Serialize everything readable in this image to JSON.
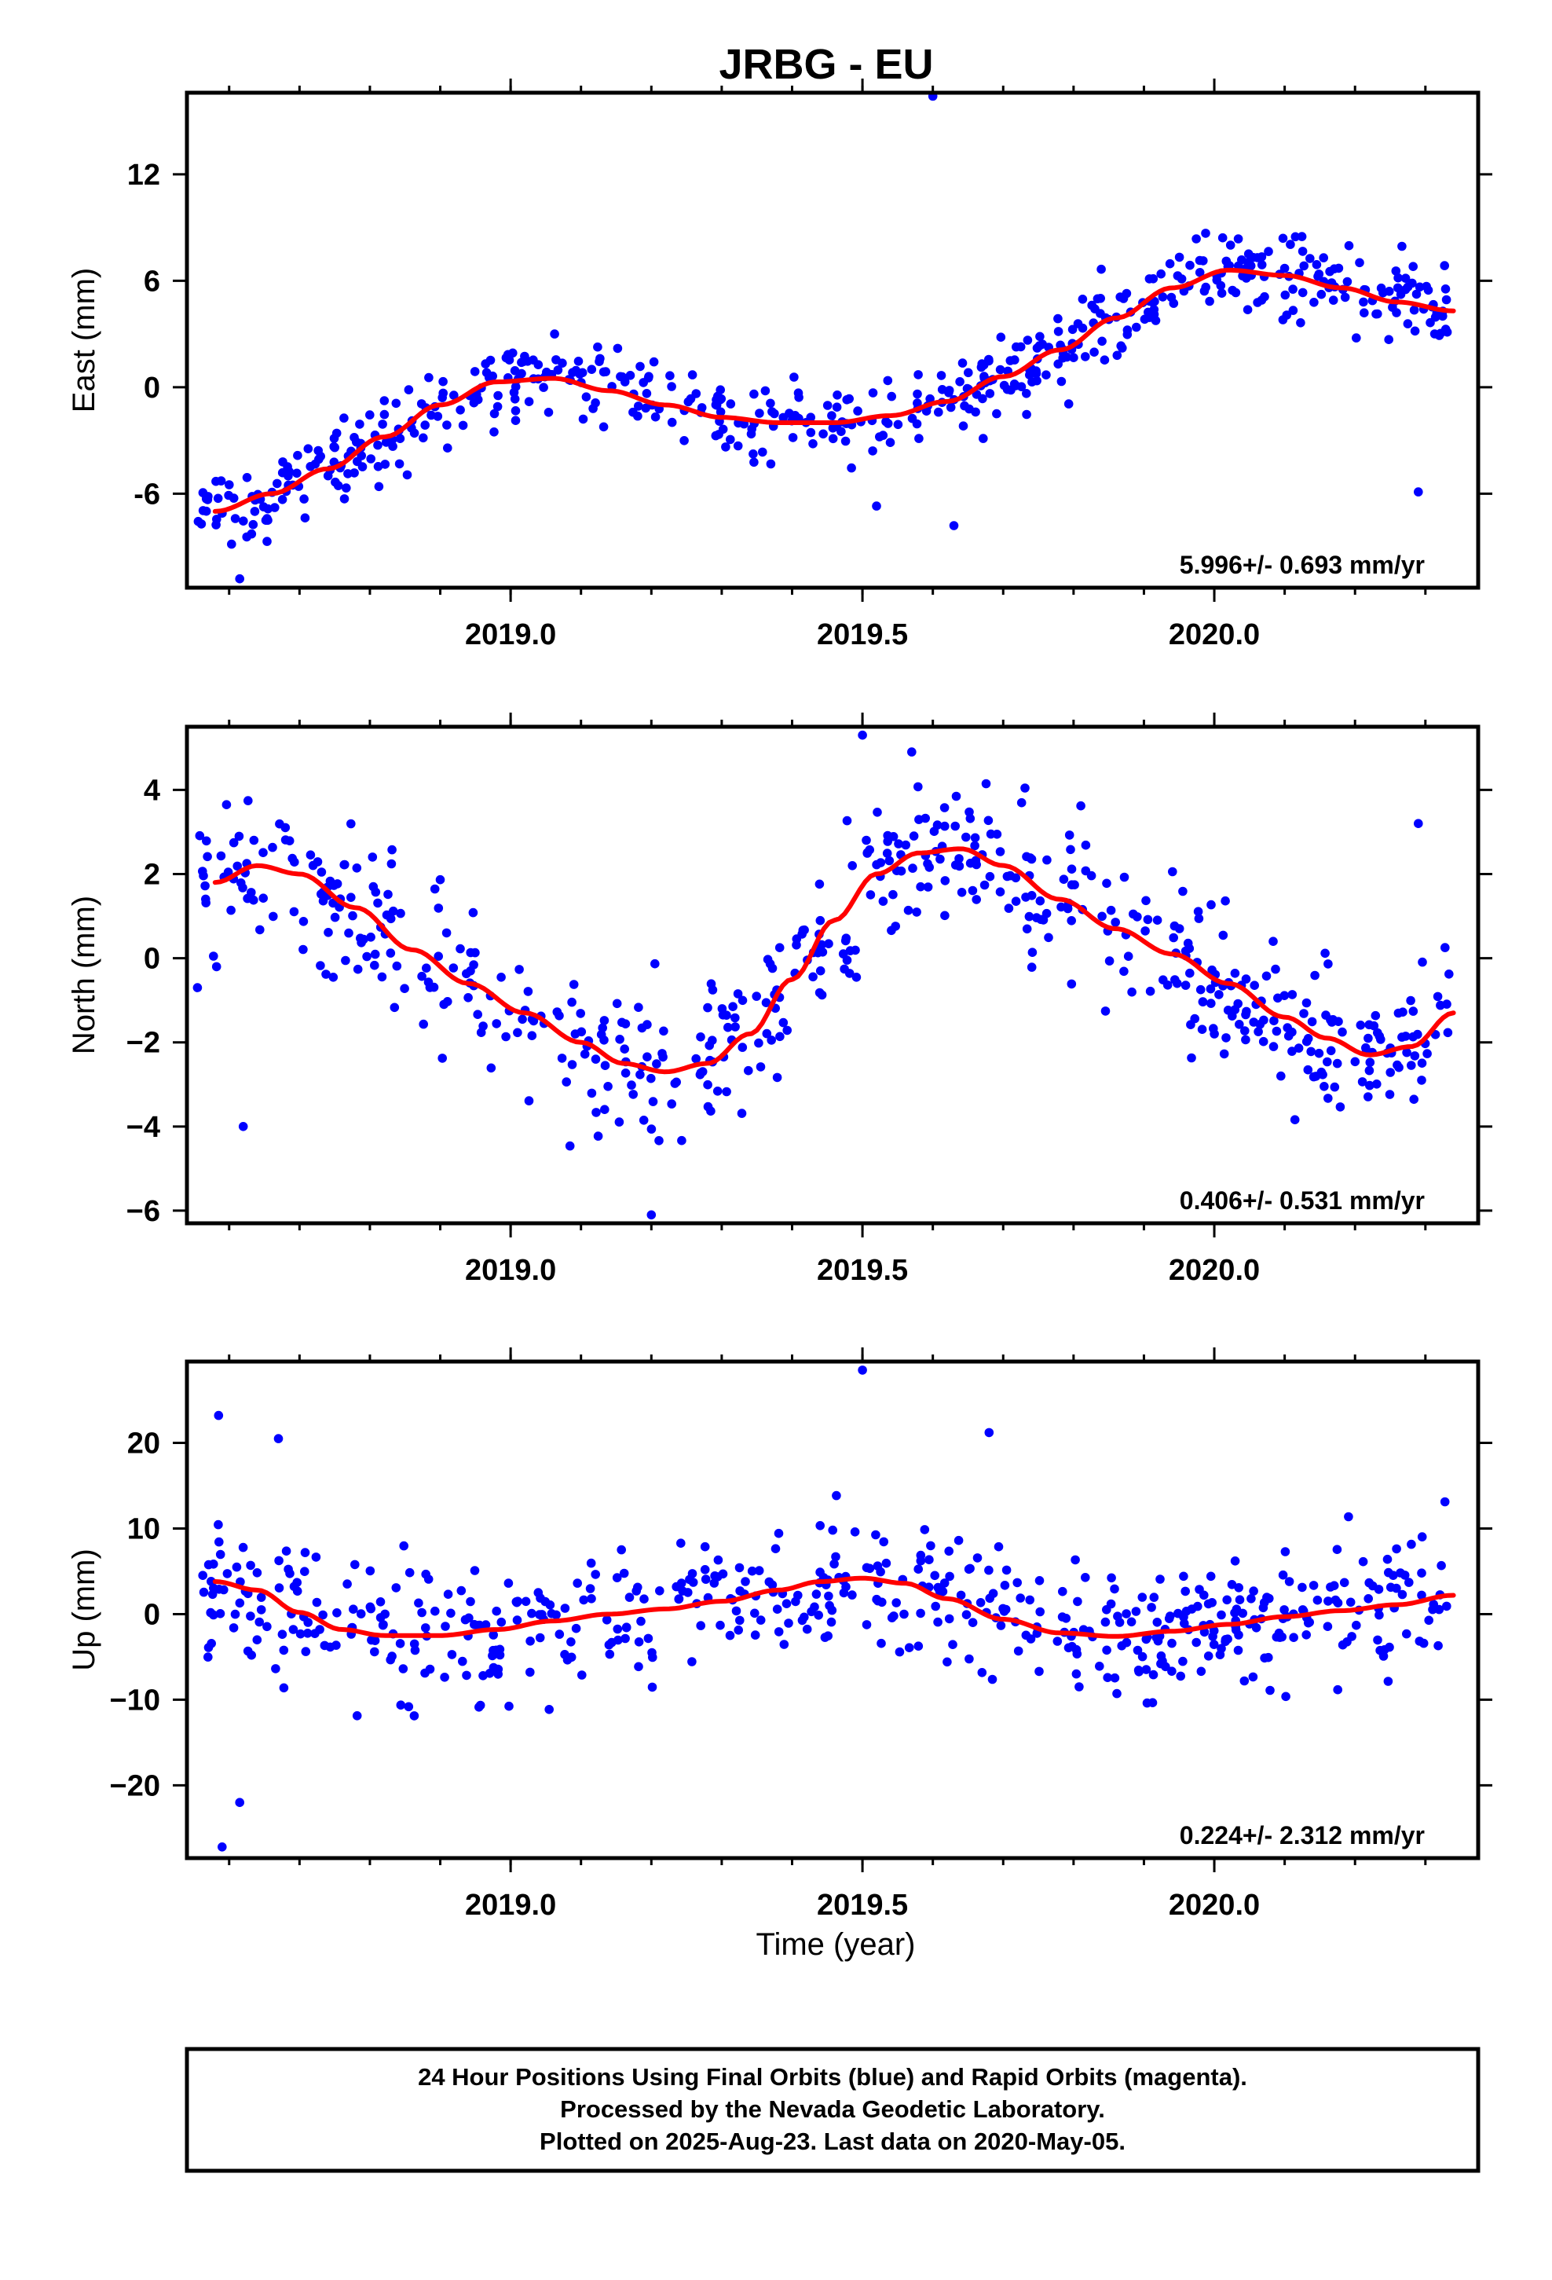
{
  "title": "JRBG - EU",
  "xlabel": "Time (year)",
  "footer": {
    "line1": "24 Hour Positions Using Final Orbits (blue) and Rapid Orbits (magenta).",
    "line2": "Processed by the Nevada Geodetic Laboratory.",
    "line3": "Plotted on 2025-Aug-23. Last data on 2020-May-05."
  },
  "colors": {
    "points": "#0000ff",
    "fit": "#ff0000",
    "frame": "#000000"
  },
  "chart_data": [
    {
      "type": "scatter",
      "name": "east",
      "ylabel": "East (mm)",
      "rate_label": "5.996+/- 0.693 mm/yr",
      "xlim": [
        2018.54,
        2020.375
      ],
      "ylim": [
        -11.3,
        16.6
      ],
      "xticks": [
        2019.0,
        2019.5,
        2020.0
      ],
      "xtick_labels": [
        "2019.0",
        "2019.5",
        "2020.0"
      ],
      "yticks": [
        -6,
        0,
        6,
        12
      ],
      "ytick_labels": [
        "-6",
        "0",
        "6",
        "12"
      ],
      "fit": {
        "x": [
          2018.58,
          2018.66,
          2018.74,
          2018.82,
          2018.9,
          2018.98,
          2019.06,
          2019.14,
          2019.22,
          2019.3,
          2019.38,
          2019.46,
          2019.54,
          2019.62,
          2019.7,
          2019.78,
          2019.86,
          2019.94,
          2020.02,
          2020.1,
          2020.18,
          2020.26,
          2020.34
        ],
        "y": [
          -7.0,
          -6.0,
          -4.6,
          -2.8,
          -1.0,
          0.3,
          0.5,
          -0.2,
          -1.0,
          -1.7,
          -2.0,
          -2.0,
          -1.6,
          -0.8,
          0.6,
          2.1,
          3.9,
          5.6,
          6.6,
          6.3,
          5.6,
          4.8,
          4.3
        ]
      },
      "points": {
        "x": [
          2018.6,
          2018.655,
          2019.6,
          2019.63,
          2020.29,
          2018.615,
          2019.52
        ],
        "y": [
          -5.5,
          -7.5,
          16.4,
          -7.8,
          -5.9,
          -10.8,
          -6.7
        ]
      }
    },
    {
      "type": "scatter",
      "name": "north",
      "ylabel": "North (mm)",
      "rate_label": "0.406+/- 0.531 mm/yr",
      "xlim": [
        2018.54,
        2020.375
      ],
      "ylim": [
        -6.3,
        5.5
      ],
      "xticks": [
        2019.0,
        2019.5,
        2020.0
      ],
      "xtick_labels": [
        "2019.0",
        "2019.5",
        "2020.0"
      ],
      "yticks": [
        -6,
        -4,
        -2,
        0,
        2,
        4
      ],
      "ytick_labels": [
        "−6",
        "−4",
        "−2",
        "0",
        "2",
        "4"
      ],
      "fit": {
        "x": [
          2018.58,
          2018.64,
          2018.7,
          2018.78,
          2018.86,
          2018.94,
          2019.02,
          2019.1,
          2019.16,
          2019.22,
          2019.28,
          2019.34,
          2019.4,
          2019.46,
          2019.52,
          2019.58,
          2019.64,
          2019.7,
          2019.78,
          2019.86,
          2019.94,
          2020.02,
          2020.1,
          2020.16,
          2020.22,
          2020.28,
          2020.34
        ],
        "y": [
          1.8,
          2.2,
          2.0,
          1.2,
          0.2,
          -0.6,
          -1.3,
          -2.0,
          -2.5,
          -2.7,
          -2.5,
          -1.8,
          -0.5,
          0.9,
          2.0,
          2.5,
          2.6,
          2.2,
          1.4,
          0.7,
          0.1,
          -0.6,
          -1.4,
          -1.9,
          -2.3,
          -2.1,
          -1.3
        ]
      },
      "points": {
        "x": [
          2018.555,
          2018.62,
          2019.2,
          2019.5,
          2019.57,
          2020.29
        ],
        "y": [
          -0.7,
          -4.0,
          -6.1,
          5.3,
          4.9,
          3.2
        ]
      }
    },
    {
      "type": "scatter",
      "name": "up",
      "ylabel": "Up (mm)",
      "rate_label": "0.224+/- 2.312 mm/yr",
      "xlim": [
        2018.54,
        2020.375
      ],
      "ylim": [
        -28.5,
        29.5
      ],
      "xticks": [
        2019.0,
        2019.5,
        2020.0
      ],
      "xtick_labels": [
        "2019.0",
        "2019.5",
        "2020.0"
      ],
      "yticks": [
        -20,
        -10,
        0,
        10,
        20
      ],
      "ytick_labels": [
        "−20",
        "−10",
        "0",
        "10",
        "20"
      ],
      "fit": {
        "x": [
          2018.58,
          2018.64,
          2018.7,
          2018.76,
          2018.82,
          2018.9,
          2018.98,
          2019.06,
          2019.14,
          2019.22,
          2019.3,
          2019.38,
          2019.44,
          2019.5,
          2019.56,
          2019.62,
          2019.7,
          2019.78,
          2019.86,
          2019.94,
          2020.02,
          2020.1,
          2020.18,
          2020.26,
          2020.34
        ],
        "y": [
          3.8,
          2.8,
          0.2,
          -1.8,
          -2.5,
          -2.5,
          -1.8,
          -0.8,
          0.0,
          0.6,
          1.5,
          2.8,
          3.8,
          4.2,
          3.6,
          1.8,
          -0.6,
          -2.2,
          -2.6,
          -2.0,
          -1.2,
          -0.3,
          0.4,
          1.1,
          2.2
        ]
      },
      "points": {
        "x": [
          2018.615,
          2018.585,
          2019.5,
          2019.68,
          2018.59,
          2018.67
        ],
        "y": [
          -22.0,
          23.2,
          28.5,
          21.2,
          -27.2,
          20.5
        ]
      }
    }
  ]
}
